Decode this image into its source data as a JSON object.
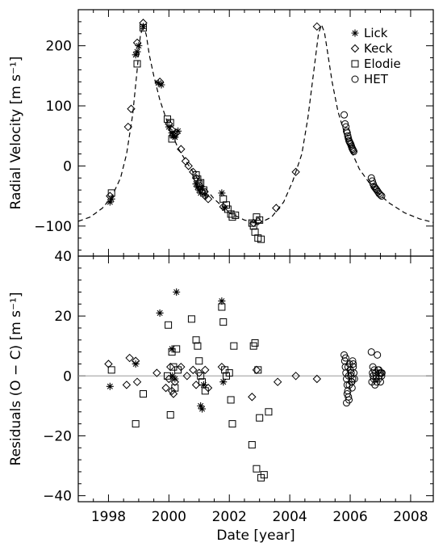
{
  "chart_data": [
    {
      "panel": "top",
      "type": "scatter",
      "title": "",
      "xlabel": "",
      "ylabel": "Radial Velocity [m s⁻¹]",
      "xlim": [
        1997.0,
        2008.75
      ],
      "ylim": [
        -150,
        260
      ],
      "x_ticks": [
        1998,
        2000,
        2002,
        2004,
        2006,
        2008
      ],
      "y_ticks": [
        -100,
        0,
        100,
        200
      ],
      "y_tick_labels": [
        "−100",
        "0",
        "100",
        "200"
      ],
      "legend": {
        "position": "top-right",
        "entries": [
          {
            "label": "Lick",
            "marker": "asterisk"
          },
          {
            "label": "Keck",
            "marker": "diamond"
          },
          {
            "label": "Elodie",
            "marker": "square"
          },
          {
            "label": "HET",
            "marker": "circle"
          }
        ]
      },
      "model_curve": {
        "style": "dashed",
        "x": [
          1997.0,
          1997.4,
          1997.8,
          1998.1,
          1998.4,
          1998.6,
          1998.8,
          1998.95,
          1999.05,
          1999.15,
          1999.25,
          1999.35,
          1999.5,
          1999.7,
          2000.0,
          2000.3,
          2000.6,
          2001.0,
          2001.5,
          2002.0,
          2002.5,
          2003.0,
          2003.4,
          2003.8,
          2004.1,
          2004.4,
          2004.6,
          2004.8,
          2004.95,
          2005.05,
          2005.15,
          2005.25,
          2005.4,
          2005.6,
          2005.9,
          2006.3,
          2006.8,
          2007.3,
          2007.8,
          2008.3,
          2008.75
        ],
        "y": [
          -92,
          -85,
          -70,
          -52,
          -20,
          20,
          85,
          160,
          215,
          235,
          218,
          185,
          150,
          110,
          65,
          30,
          5,
          -25,
          -55,
          -78,
          -90,
          -95,
          -85,
          -60,
          -25,
          20,
          80,
          160,
          220,
          235,
          222,
          190,
          140,
          90,
          40,
          -5,
          -40,
          -62,
          -78,
          -88,
          -94
        ]
      },
      "series": [
        {
          "name": "Lick",
          "marker": "asterisk",
          "x": [
            1998.05,
            1998.1,
            1998.9,
            1998.95,
            1999.0,
            1999.15,
            1999.65,
            1999.75,
            2000.0,
            2000.1,
            2000.15,
            2000.2,
            2000.3,
            2000.9,
            2000.95,
            2001.0,
            2001.05,
            2001.1,
            2001.2,
            2001.75,
            2001.85
          ],
          "y": [
            -60,
            -55,
            185,
            190,
            200,
            232,
            138,
            135,
            65,
            55,
            50,
            48,
            58,
            -30,
            -35,
            -40,
            -45,
            -38,
            -48,
            -45,
            -70
          ]
        },
        {
          "name": "Keck",
          "marker": "diamond",
          "x": [
            1998.05,
            1998.65,
            1998.75,
            1998.95,
            1999.15,
            1999.7,
            2000.0,
            2000.1,
            2000.15,
            2000.25,
            2000.4,
            2000.55,
            2000.65,
            2000.8,
            2000.9,
            2001.0,
            2001.1,
            2001.2,
            2001.3,
            2001.8,
            2002.8,
            2002.95,
            2003.55,
            2004.2,
            2004.9
          ],
          "y": [
            -50,
            65,
            95,
            205,
            238,
            140,
            70,
            60,
            52,
            55,
            28,
            8,
            0,
            -10,
            -20,
            -35,
            -42,
            -50,
            -55,
            -68,
            -95,
            -92,
            -70,
            -10,
            232
          ]
        },
        {
          "name": "Elodie",
          "marker": "square",
          "x": [
            1998.1,
            1998.95,
            1999.15,
            1999.95,
            2000.05,
            2000.1,
            2000.15,
            2000.9,
            2000.95,
            2001.0,
            2001.05,
            2001.15,
            2001.8,
            2001.9,
            2001.95,
            2002.05,
            2002.1,
            2002.2,
            2002.75,
            2002.8,
            2002.85,
            2002.9,
            2002.95,
            2003.0,
            2003.05
          ],
          "y": [
            -45,
            170,
            230,
            78,
            72,
            45,
            52,
            -15,
            -22,
            -30,
            -28,
            -40,
            -55,
            -65,
            -72,
            -80,
            -85,
            -82,
            -95,
            -100,
            -110,
            -85,
            -120,
            -90,
            -122
          ]
        },
        {
          "name": "HET",
          "marker": "circle",
          "x": [
            2005.8,
            2005.83,
            2005.86,
            2005.88,
            2005.9,
            2005.92,
            2005.94,
            2005.96,
            2005.98,
            2006.0,
            2006.02,
            2006.04,
            2006.06,
            2006.08,
            2006.1,
            2006.12,
            2006.7,
            2006.73,
            2006.76,
            2006.79,
            2006.82,
            2006.85,
            2006.88,
            2006.92,
            2006.96,
            2007.0,
            2007.04
          ],
          "y": [
            85,
            70,
            65,
            58,
            55,
            50,
            46,
            42,
            40,
            38,
            36,
            33,
            30,
            28,
            26,
            24,
            -20,
            -25,
            -30,
            -34,
            -36,
            -38,
            -40,
            -43,
            -46,
            -48,
            -50
          ]
        }
      ]
    },
    {
      "panel": "bottom",
      "type": "scatter",
      "title": "",
      "xlabel": "Date [year]",
      "ylabel": "Residuals (O − C) [m s⁻¹]",
      "xlim": [
        1997.0,
        2008.75
      ],
      "ylim": [
        -42,
        40
      ],
      "x_ticks": [
        1998,
        2000,
        2002,
        2004,
        2006,
        2008
      ],
      "x_tick_labels": [
        "1998",
        "2000",
        "2002",
        "2004",
        "2006",
        "2008"
      ],
      "y_ticks": [
        -40,
        -20,
        0,
        20,
        40
      ],
      "y_tick_labels": [
        "−40",
        "−20",
        "0",
        "20",
        "40"
      ],
      "reference_line": 0,
      "series": [
        {
          "name": "Lick",
          "marker": "asterisk",
          "x": [
            1998.05,
            1998.9,
            1999.7,
            2000.1,
            2000.12,
            2000.2,
            2000.25,
            2001.05,
            2001.1,
            2001.15,
            2001.75,
            2001.8
          ],
          "y": [
            -3.5,
            4,
            21,
            9,
            0,
            -1,
            28,
            -10,
            -11,
            -3,
            25,
            -2
          ]
        },
        {
          "name": "Keck",
          "marker": "diamond",
          "x": [
            1998.0,
            1998.6,
            1998.7,
            1998.9,
            1998.95,
            1999.6,
            1999.9,
            2000.0,
            2000.05,
            2000.1,
            2000.15,
            2000.2,
            2000.4,
            2000.6,
            2000.8,
            2000.9,
            2001.0,
            2001.2,
            2001.3,
            2001.75,
            2002.75,
            2002.9,
            2003.6,
            2004.2,
            2004.9
          ],
          "y": [
            4,
            -3,
            6,
            5,
            -2,
            1,
            -4,
            -1,
            3,
            -5,
            -6,
            -2,
            3,
            0,
            2,
            -3,
            1,
            2,
            -4,
            3,
            -7,
            2,
            -2,
            0,
            -1
          ]
        },
        {
          "name": "Elodie",
          "marker": "square",
          "x": [
            1998.1,
            1998.9,
            1999.15,
            1999.95,
            1999.98,
            2000.05,
            2000.1,
            2000.15,
            2000.2,
            2000.25,
            2000.3,
            2000.75,
            2000.9,
            2000.95,
            2001.0,
            2001.05,
            2001.1,
            2001.2,
            2001.75,
            2001.8,
            2001.85,
            2001.9,
            2002.0,
            2002.05,
            2002.1,
            2002.15,
            2002.75,
            2002.8,
            2002.85,
            2002.9,
            2002.95,
            2003.0,
            2003.05,
            2003.15,
            2003.3
          ],
          "y": [
            2,
            -16,
            -6,
            0,
            17,
            -13,
            8,
            3,
            -4,
            9,
            2,
            19,
            12,
            10,
            5,
            0,
            -2,
            -5,
            23,
            18,
            2,
            0,
            1,
            -8,
            -16,
            10,
            -23,
            10,
            11,
            -31,
            2,
            -14,
            -34,
            -33,
            -12
          ]
        },
        {
          "name": "HET",
          "marker": "circle",
          "x": [
            2005.8,
            2005.82,
            2005.84,
            2005.86,
            2005.88,
            2005.9,
            2005.92,
            2005.94,
            2005.96,
            2005.98,
            2006.0,
            2006.02,
            2006.04,
            2006.06,
            2006.08,
            2006.1,
            2006.12,
            2006.14,
            2005.85,
            2005.9,
            2005.95,
            2006.0,
            2006.05,
            2006.1,
            2005.88,
            2005.93,
            2005.97,
            2006.03,
            2006.08,
            2006.7,
            2006.72,
            2006.74,
            2006.76,
            2006.78,
            2006.8,
            2006.82,
            2006.84,
            2006.86,
            2006.88,
            2006.9,
            2006.92,
            2006.94,
            2006.96,
            2006.98,
            2007.0,
            2007.02,
            2007.04,
            2006.75,
            2006.85,
            2006.95,
            2007.05
          ],
          "y": [
            7,
            5,
            3,
            1,
            -1,
            -3,
            -5,
            -7,
            -8,
            4,
            2,
            0,
            -2,
            -4,
            5,
            3,
            1,
            -1,
            6,
            -6,
            0,
            2,
            -2,
            4,
            -9,
            3,
            -3,
            1,
            -1,
            8,
            -2,
            1,
            0,
            -1,
            2,
            -3,
            1,
            0,
            -2,
            7,
            2,
            -1,
            0,
            1,
            -2,
            1,
            0,
            3,
            -1,
            2,
            1
          ]
        }
      ]
    }
  ]
}
